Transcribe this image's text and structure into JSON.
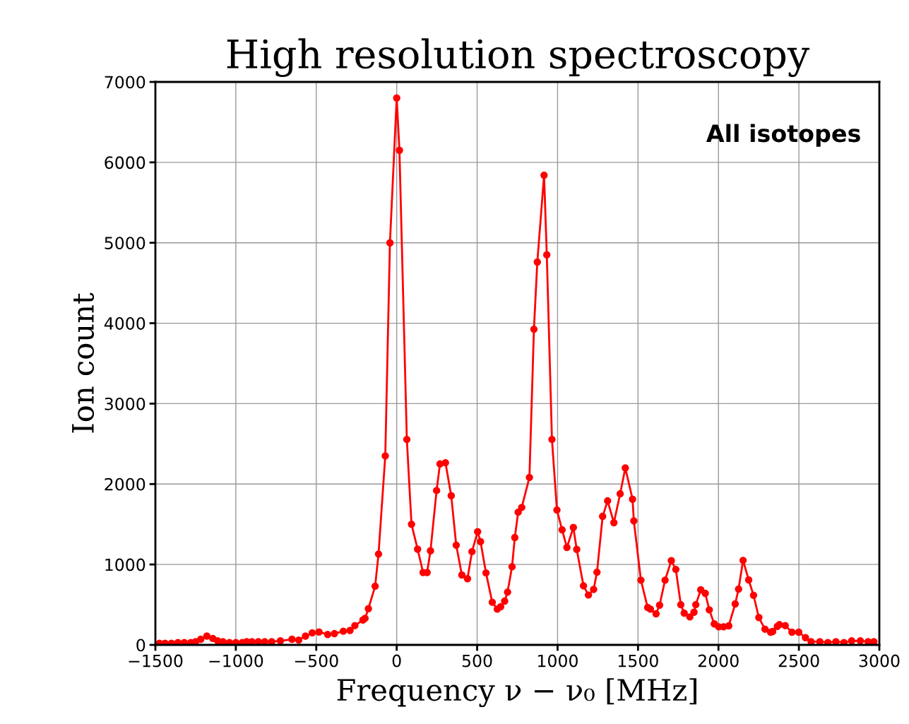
{
  "chart_data": {
    "type": "line",
    "title": "High resolution spectroscopy",
    "xlabel": "Frequency ν − ν₀ [MHz]",
    "ylabel": "Ion count",
    "annotations": [
      "All isotopes"
    ],
    "series": [
      {
        "color": "#ff0000",
        "x": [
          -1475,
          -1440,
          -1400,
          -1360,
          -1320,
          -1280,
          -1250,
          -1218,
          -1180,
          -1143,
          -1113,
          -1080,
          -1040,
          -1000,
          -960,
          -933,
          -900,
          -860,
          -820,
          -777,
          -723,
          -651,
          -609,
          -567,
          -525,
          -483,
          -429,
          -387,
          -332,
          -290,
          -260,
          -210,
          -197,
          -176,
          -134,
          -113,
          -71,
          -42,
          0,
          17,
          63,
          92,
          130,
          164,
          189,
          210,
          248,
          269,
          303,
          339,
          370,
          405,
          440,
          468,
          503,
          521,
          555,
          594,
          625,
          646,
          671,
          689,
          717,
          734,
          755,
          777,
          825,
          853,
          874,
          916,
          933,
          965,
          996,
          1028,
          1058,
          1098,
          1119,
          1161,
          1192,
          1224,
          1245,
          1280,
          1311,
          1350,
          1389,
          1421,
          1466,
          1474,
          1518,
          1560,
          1577,
          1612,
          1634,
          1668,
          1707,
          1735,
          1766,
          1787,
          1822,
          1848,
          1859,
          1890,
          1918,
          1943,
          1974,
          2002,
          2032,
          2064,
          2104,
          2125,
          2153,
          2188,
          2218,
          2251,
          2289,
          2324,
          2337,
          2366,
          2379,
          2415,
          2457,
          2499,
          2541,
          2576,
          2630,
          2680,
          2730,
          2780,
          2828,
          2882,
          2930,
          2966
        ],
        "values": [
          20,
          20,
          20,
          30,
          30,
          30,
          40,
          70,
          110,
          80,
          50,
          40,
          30,
          30,
          30,
          40,
          40,
          40,
          40,
          40,
          50,
          70,
          60,
          110,
          150,
          160,
          130,
          140,
          170,
          180,
          240,
          310,
          330,
          450,
          730,
          1130,
          2350,
          5000,
          6800,
          6150,
          2555,
          1500,
          1190,
          900,
          900,
          1170,
          1920,
          2250,
          2265,
          1855,
          1240,
          870,
          823,
          1160,
          1407,
          1285,
          895,
          530,
          445,
          474,
          545,
          656,
          972,
          1335,
          1650,
          1709,
          2083,
          3925,
          4760,
          5840,
          4850,
          2555,
          1677,
          1431,
          1212,
          1460,
          1188,
          735,
          620,
          690,
          904,
          1598,
          1791,
          1519,
          1879,
          2200,
          1811,
          1542,
          805,
          465,
          445,
          386,
          494,
          805,
          1047,
          939,
          500,
          395,
          348,
          406,
          500,
          685,
          641,
          436,
          261,
          225,
          225,
          237,
          509,
          694,
          1051,
          808,
          617,
          340,
          196,
          158,
          167,
          231,
          252,
          240,
          158,
          158,
          90,
          40,
          40,
          30,
          40,
          30,
          50,
          50,
          40,
          40
        ]
      }
    ],
    "xlim": [
      -1500,
      3000
    ],
    "xticks": [
      {
        "value": -1500,
        "label": "−1500"
      },
      {
        "value": -1000,
        "label": "−1000"
      },
      {
        "value": -500,
        "label": "−500"
      },
      0,
      500,
      1000,
      1500,
      2000,
      2500,
      3000
    ],
    "ylim": [
      0,
      7000
    ],
    "yticks": [
      0,
      1000,
      2000,
      3000,
      4000,
      5000,
      6000,
      7000
    ],
    "grid": true,
    "marker": "circle",
    "line_style": "solid"
  }
}
